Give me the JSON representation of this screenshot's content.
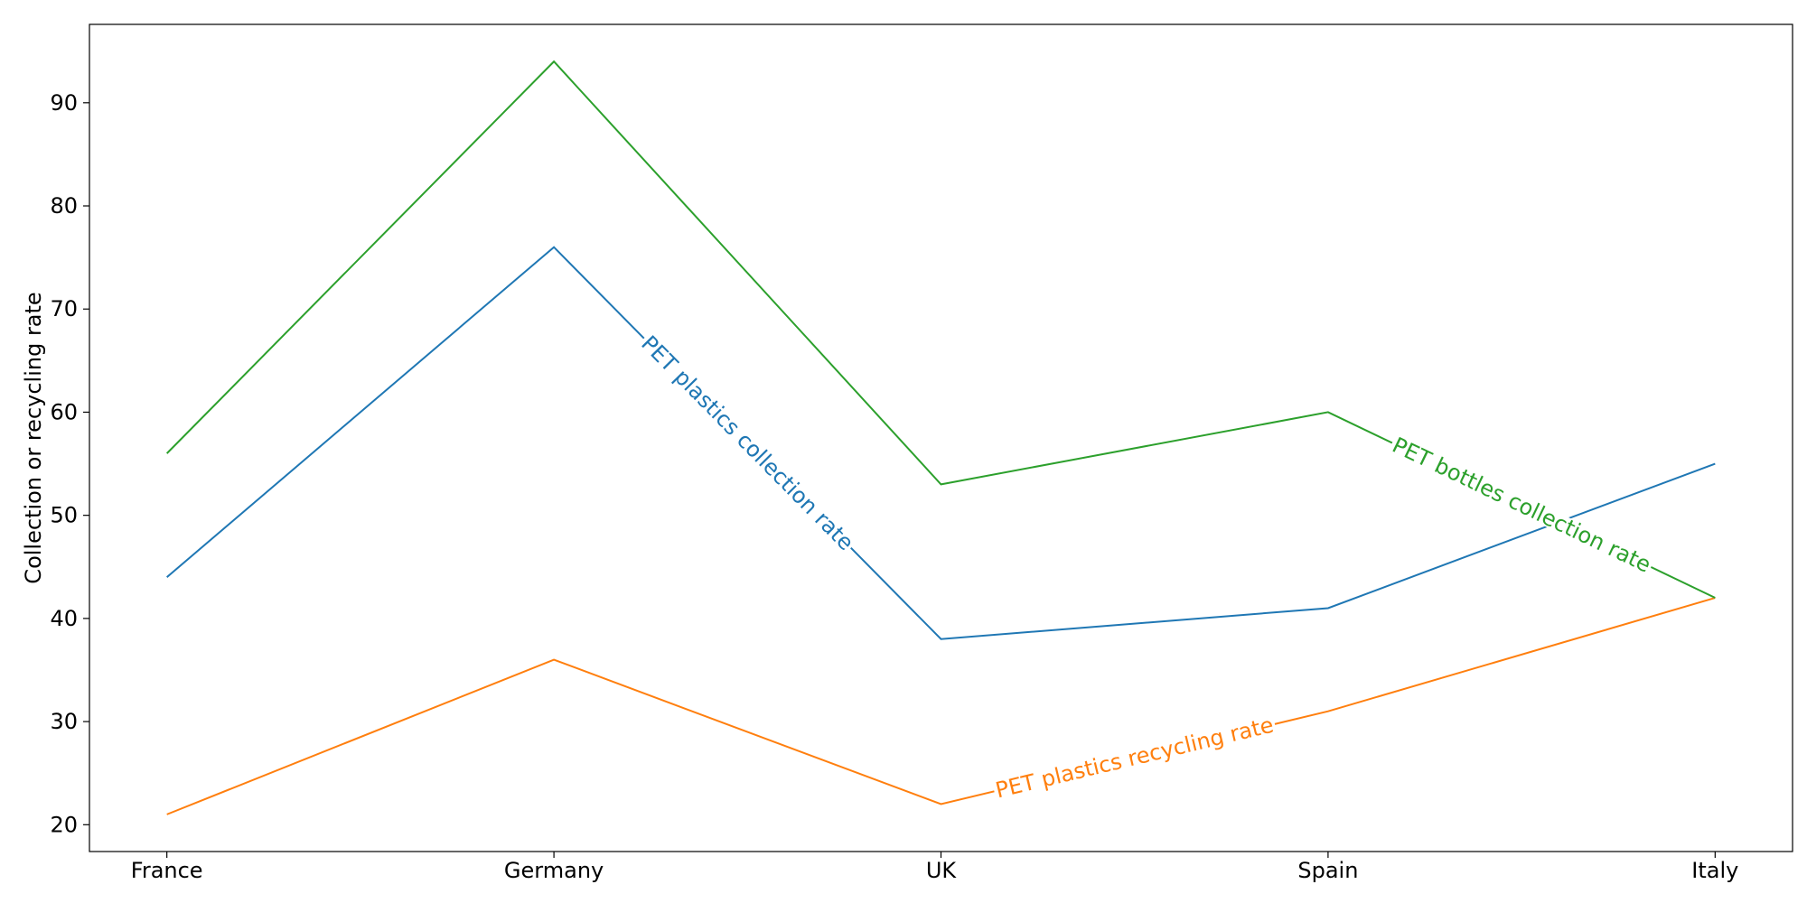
{
  "chart_data": {
    "type": "line",
    "title": "",
    "xlabel": "",
    "ylabel": "Collection or recycling rate",
    "categories": [
      "France",
      "Germany",
      "UK",
      "Spain",
      "Italy"
    ],
    "ylim": [
      17.4,
      97.6
    ],
    "yticks": [
      20,
      30,
      40,
      50,
      60,
      70,
      80,
      90
    ],
    "grid": false,
    "legend": "inline labels on lines",
    "series": [
      {
        "name": "PET plastics collection rate",
        "color": "#1f77b4",
        "values": [
          44,
          76,
          38,
          41,
          55
        ],
        "label_at_x": 1.0
      },
      {
        "name": "PET plastics recycling rate",
        "color": "#ff7f0e",
        "values": [
          21,
          36,
          22,
          31,
          42
        ],
        "label_at_x": 2.0
      },
      {
        "name": "PET bottles collection rate",
        "color": "#2ca02c",
        "values": [
          56,
          94,
          53,
          60,
          42
        ],
        "label_at_x": 3.0
      }
    ]
  }
}
